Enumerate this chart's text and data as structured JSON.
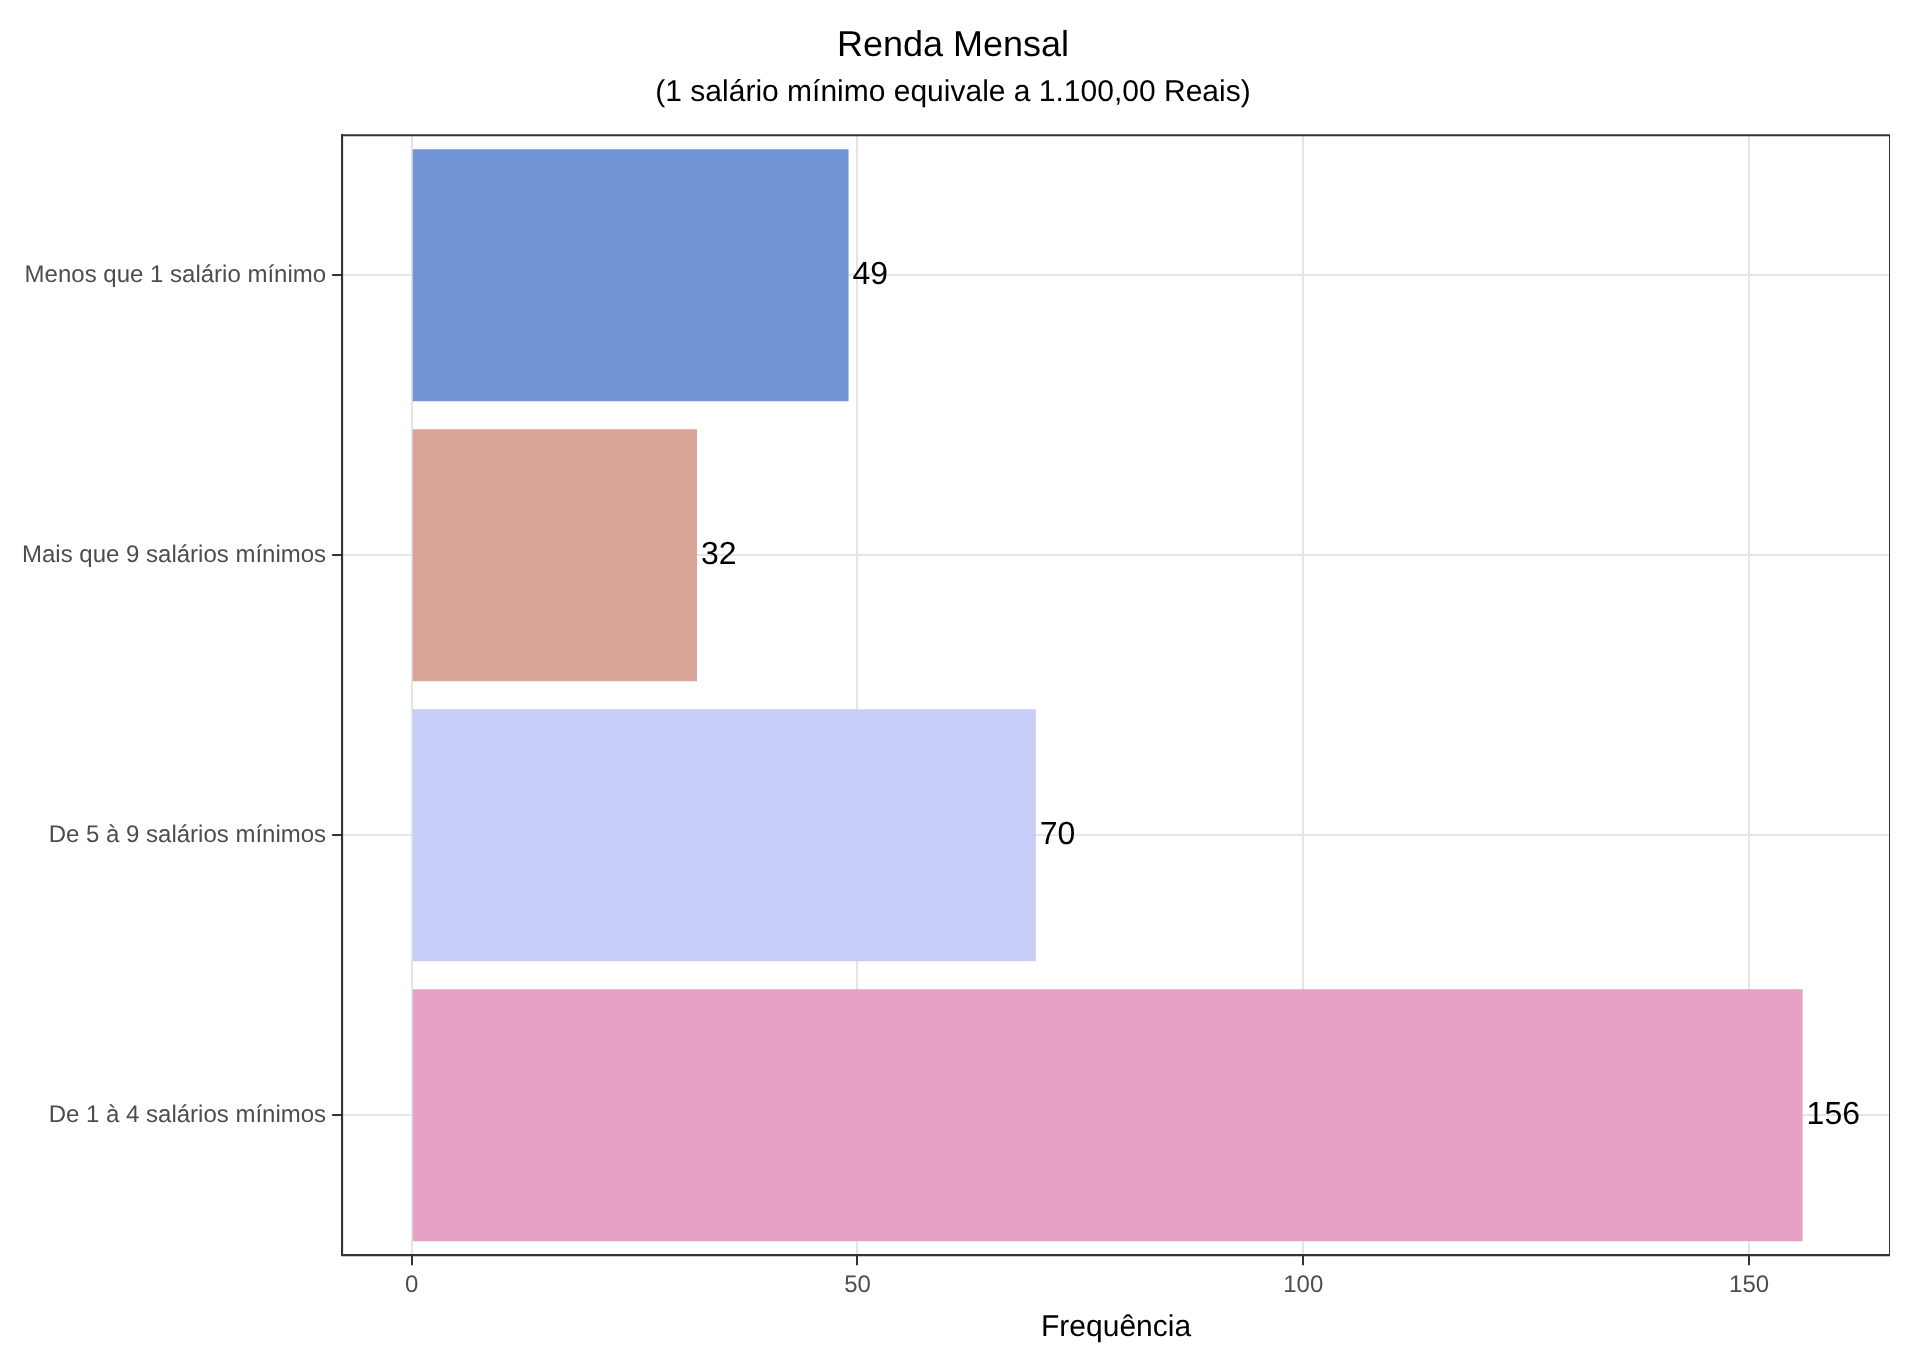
{
  "chart_data": {
    "type": "bar",
    "orientation": "horizontal",
    "title": "Renda Mensal",
    "subtitle": "(1 salário mínimo equivale a 1.100,00 Reais)",
    "xlabel": "Frequência",
    "categories": [
      "Menos que 1 salário mínimo",
      "Mais que 9 salários mínimos",
      "De 5 à 9 salários mínimos",
      "De 1 à 4 salários mínimos"
    ],
    "values": [
      49,
      32,
      70,
      156
    ],
    "colors": [
      "#7295d6",
      "#d8a498",
      "#c6cdf7",
      "#e6a2c5"
    ],
    "xlim": [
      -7.8,
      165.8
    ],
    "xticks": [
      0,
      50,
      100,
      150
    ],
    "grid": true,
    "legend": false,
    "data_labels": true
  }
}
